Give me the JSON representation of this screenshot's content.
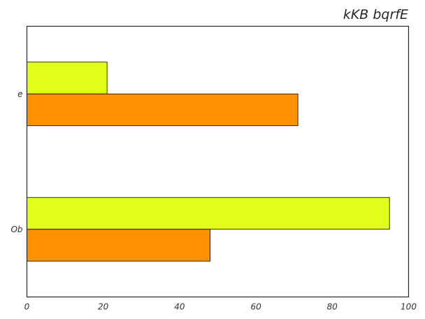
{
  "chart_data": {
    "type": "bar",
    "orientation": "horizontal",
    "title": "kKB bqrfE",
    "xlabel": "",
    "ylabel": "",
    "xlim": [
      0,
      100
    ],
    "xticks": [
      "0",
      "20",
      "40",
      "60",
      "80",
      "100"
    ],
    "categories": [
      "e",
      "Ob"
    ],
    "series": [
      {
        "values": [
          21,
          95
        ],
        "color": "#e2ff1a"
      },
      {
        "values": [
          71,
          48
        ],
        "color": "#ff9100"
      }
    ],
    "grid": false,
    "legend": "none"
  }
}
